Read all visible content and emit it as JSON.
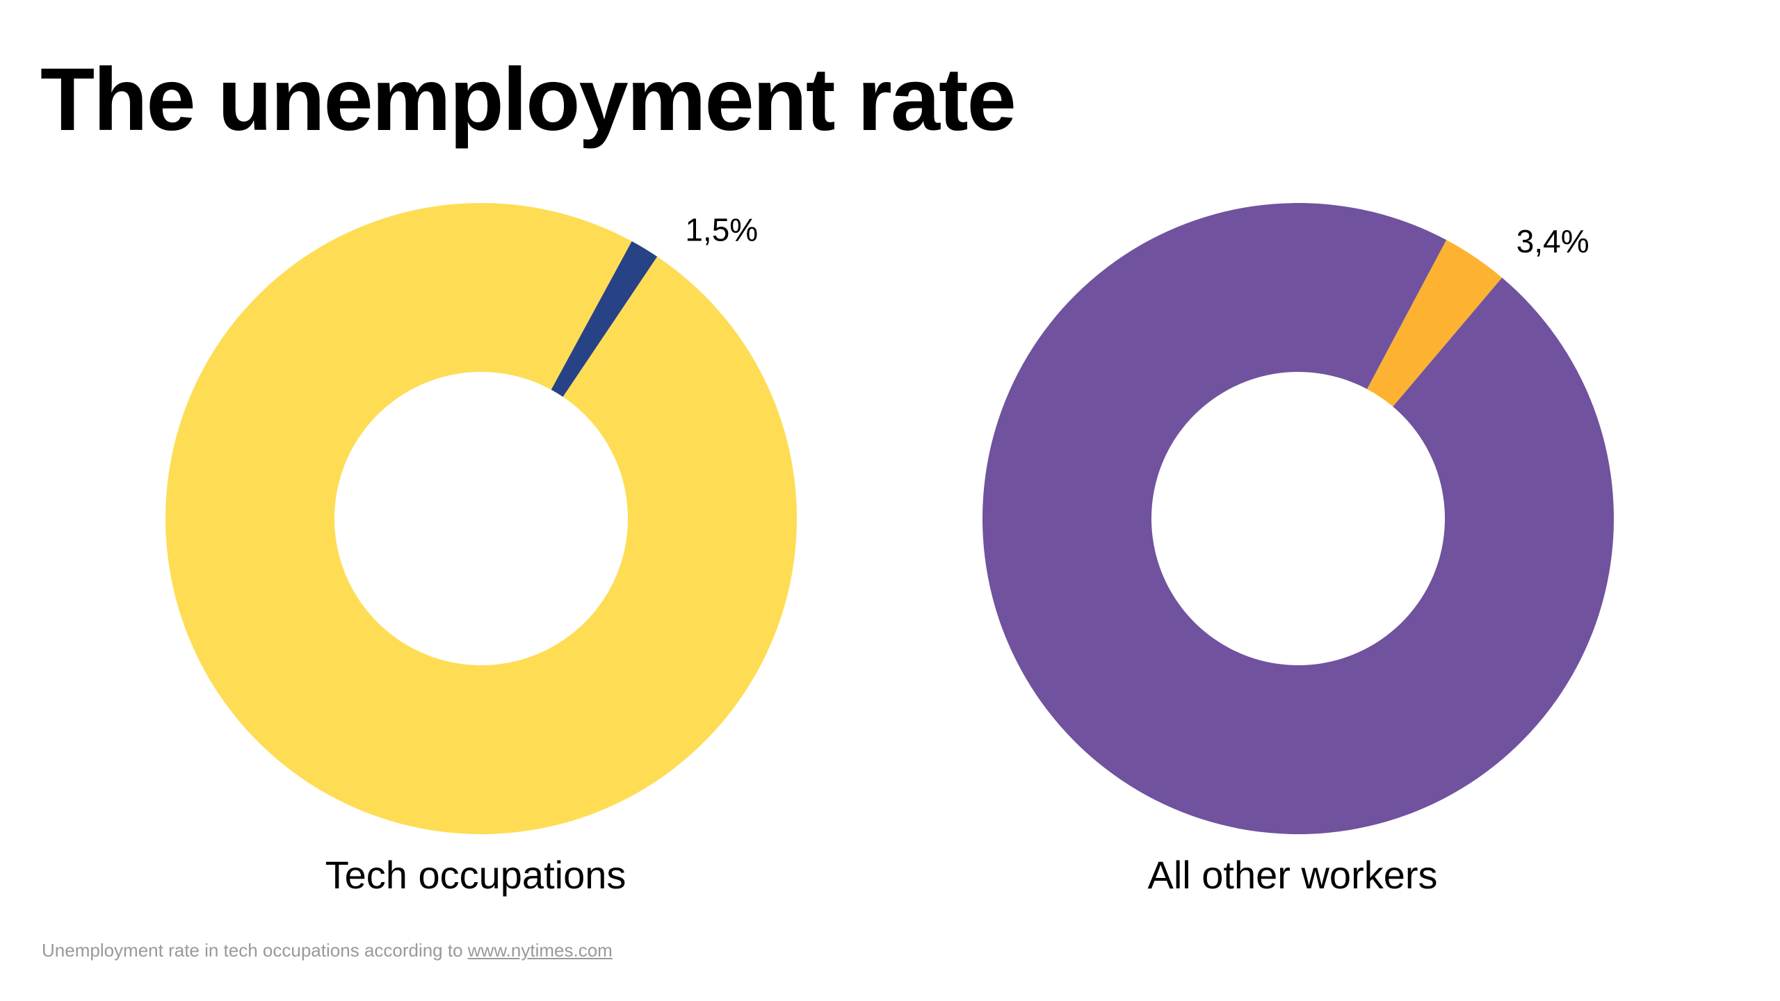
{
  "title": "The unemployment rate",
  "footer": {
    "text": "Unemployment rate in tech occupations according to ",
    "link": "www.nytimes.com"
  },
  "chart_data": [
    {
      "type": "pie",
      "subtype": "donut",
      "label": "Tech occupations",
      "slices": [
        {
          "value": 1.5,
          "label": "1,5%",
          "color": "#284286"
        },
        {
          "value": 98.5,
          "label": "",
          "color": "#FEDD55"
        }
      ]
    },
    {
      "type": "pie",
      "subtype": "donut",
      "label": "All other workers",
      "slices": [
        {
          "value": 3.4,
          "label": "3,4%",
          "color": "#FDB232"
        },
        {
          "value": 96.6,
          "label": "",
          "color": "#70529E"
        }
      ]
    }
  ]
}
